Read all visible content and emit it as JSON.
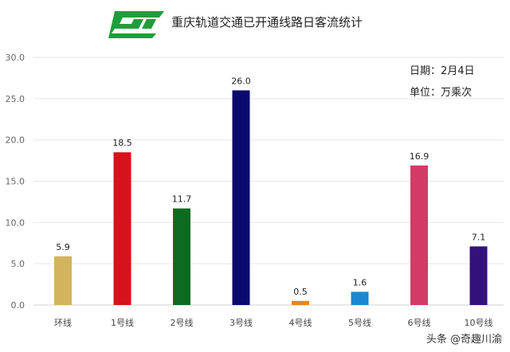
{
  "header": {
    "title": "重庆轨道交通已开通线路日客流统计",
    "date_label": "日期：2月4日",
    "unit_label": "单位：万乘次",
    "logo_color": "#1e9e3a"
  },
  "watermark": {
    "text": "头条 @奇趣川渝"
  },
  "chart_data": {
    "type": "bar",
    "title": "重庆轨道交通已开通线路日客流统计",
    "xlabel": "",
    "ylabel": "",
    "unit": "万乘次",
    "ylim": [
      0,
      30
    ],
    "yticks": [
      "0.0",
      "5.0",
      "10.0",
      "15.0",
      "20.0",
      "25.0",
      "30.0"
    ],
    "grid": true,
    "categories": [
      "环线",
      "1号线",
      "2号线",
      "3号线",
      "4号线",
      "5号线",
      "6号线",
      "10号线"
    ],
    "values": [
      5.9,
      18.5,
      11.7,
      26.0,
      0.5,
      1.6,
      16.9,
      7.1
    ],
    "value_labels": [
      "5.9",
      "18.5",
      "11.7",
      "26.0",
      "0.5",
      "1.6",
      "16.9",
      "7.1"
    ],
    "colors": [
      "#d4b35e",
      "#d5131a",
      "#0d6b21",
      "#0b0b6e",
      "#e8861d",
      "#1a88d0",
      "#d13c66",
      "#33117a"
    ]
  }
}
